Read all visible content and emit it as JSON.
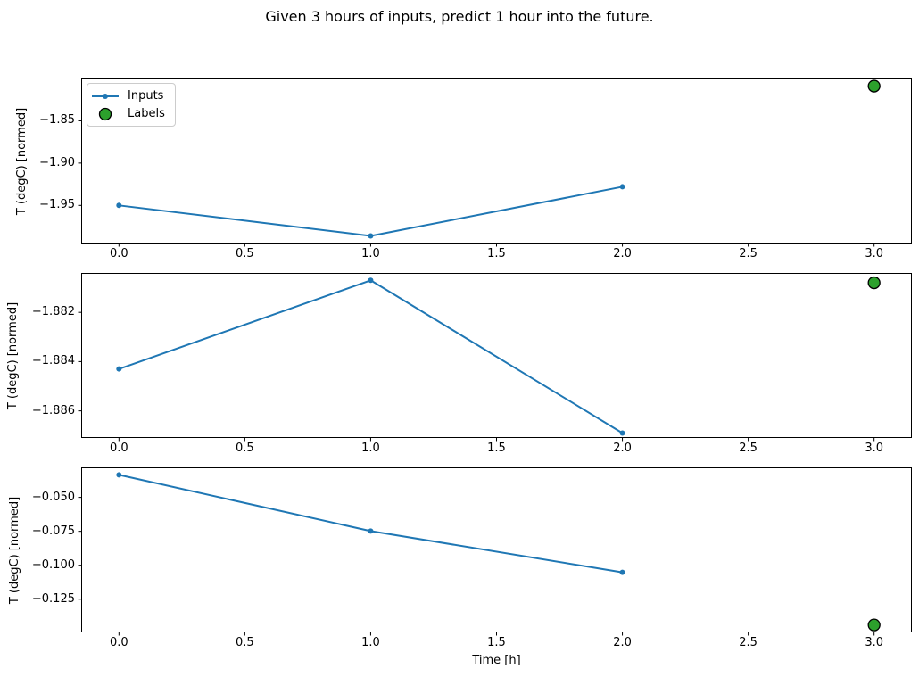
{
  "title": "Given 3 hours of inputs, predict 1 hour into the future.",
  "xlabel": "Time [h]",
  "legend": {
    "inputs": "Inputs",
    "labels": "Labels"
  },
  "colors": {
    "inputs_line": "#1f77b4",
    "labels_fill": "#2ca02c",
    "labels_edge": "#000000",
    "axis": "#000000",
    "legend_border": "#cccccc"
  },
  "chart_data": [
    {
      "type": "line",
      "ylabel": "T (degC) [normed]",
      "x": [
        0,
        1,
        2
      ],
      "series": [
        {
          "name": "Inputs",
          "values": [
            -1.95,
            -1.986,
            -1.928
          ]
        }
      ],
      "labels_point": {
        "name": "Labels",
        "x": 3,
        "y": -1.809
      },
      "xlim": [
        -0.15,
        3.15
      ],
      "ylim": [
        -1.995,
        -1.8
      ],
      "xtick_values": [
        0,
        0.5,
        1,
        1.5,
        2,
        2.5,
        3
      ],
      "xtick_labels": [
        "0.0",
        "0.5",
        "1.0",
        "1.5",
        "2.0",
        "2.5",
        "3.0"
      ],
      "ytick_values": [
        -1.85,
        -1.9,
        -1.95
      ],
      "ytick_labels": [
        "−1.85",
        "−1.90",
        "−1.95"
      ],
      "show_legend": true,
      "has_xlabel": false,
      "grid": false
    },
    {
      "type": "line",
      "ylabel": "T (degC) [normed]",
      "x": [
        0,
        1,
        2
      ],
      "series": [
        {
          "name": "Inputs",
          "values": [
            -1.8843,
            -1.8807,
            -1.8869
          ]
        }
      ],
      "labels_point": {
        "name": "Labels",
        "x": 3,
        "y": -1.8808
      },
      "xlim": [
        -0.15,
        3.15
      ],
      "ylim": [
        -1.8871,
        -1.8804
      ],
      "xtick_values": [
        0,
        0.5,
        1,
        1.5,
        2,
        2.5,
        3
      ],
      "xtick_labels": [
        "0.0",
        "0.5",
        "1.0",
        "1.5",
        "2.0",
        "2.5",
        "3.0"
      ],
      "ytick_values": [
        -1.882,
        -1.884,
        -1.886
      ],
      "ytick_labels": [
        "−1.882",
        "−1.884",
        "−1.886"
      ],
      "show_legend": false,
      "has_xlabel": false,
      "grid": false
    },
    {
      "type": "line",
      "ylabel": "T (degC) [normed]",
      "x": [
        0,
        1,
        2
      ],
      "series": [
        {
          "name": "Inputs",
          "values": [
            -0.0334,
            -0.0748,
            -0.1052
          ]
        }
      ],
      "labels_point": {
        "name": "Labels",
        "x": 3,
        "y": -0.144
      },
      "xlim": [
        -0.15,
        3.15
      ],
      "ylim": [
        -0.1495,
        -0.0279
      ],
      "xtick_values": [
        0,
        0.5,
        1,
        1.5,
        2,
        2.5,
        3
      ],
      "xtick_labels": [
        "0.0",
        "0.5",
        "1.0",
        "1.5",
        "2.0",
        "2.5",
        "3.0"
      ],
      "ytick_values": [
        -0.05,
        -0.075,
        -0.1,
        -0.125
      ],
      "ytick_labels": [
        "−0.050",
        "−0.075",
        "−0.100",
        "−0.125"
      ],
      "show_legend": false,
      "has_xlabel": true,
      "grid": false
    }
  ]
}
